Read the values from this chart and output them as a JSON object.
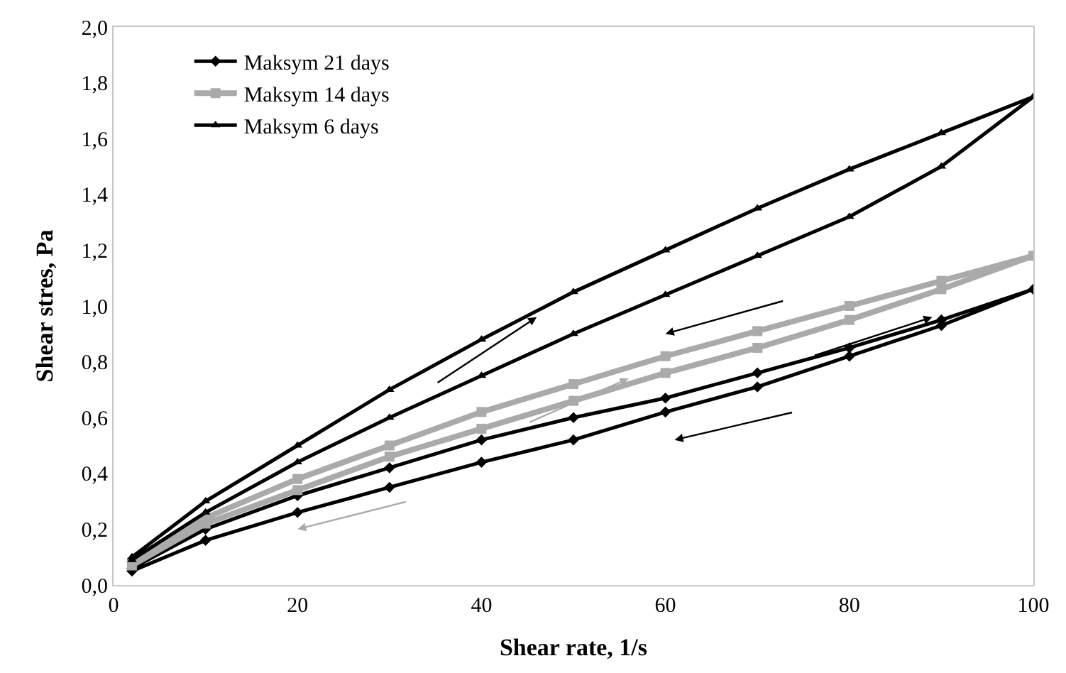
{
  "chart_data": {
    "type": "line",
    "xlabel": "Shear rate, 1/s",
    "ylabel": "Shear stres, Pa",
    "xlim": [
      0,
      100
    ],
    "xticks": [
      0,
      20,
      40,
      60,
      80,
      100
    ],
    "ylim": [
      0,
      2
    ],
    "yticks": [
      {
        "value": 0,
        "label": "0,0"
      },
      {
        "value": 0.2,
        "label": "0,2"
      },
      {
        "value": 0.4,
        "label": "0,4"
      },
      {
        "value": 0.6,
        "label": "0,6"
      },
      {
        "value": 0.8,
        "label": "0,8"
      },
      {
        "value": 1.0,
        "label": "1,0"
      },
      {
        "value": 1.2,
        "label": "1,2"
      },
      {
        "value": 1.4,
        "label": "1,4"
      },
      {
        "value": 1.6,
        "label": "1,6"
      },
      {
        "value": 1.8,
        "label": "1,8"
      },
      {
        "value": 2.0,
        "label": "2,0"
      }
    ],
    "legend": "top left",
    "line_style": "solid",
    "series": [
      {
        "name": "Maksym 21 days",
        "color": "#000000",
        "marker": "diamond",
        "x": [
          2,
          10,
          20,
          30,
          40,
          50,
          60,
          70,
          80,
          90,
          100,
          90,
          80,
          70,
          60,
          50,
          40,
          30,
          20,
          10,
          2
        ],
        "values": [
          0.06,
          0.2,
          0.32,
          0.42,
          0.52,
          0.6,
          0.67,
          0.76,
          0.85,
          0.95,
          1.06,
          0.93,
          0.82,
          0.71,
          0.62,
          0.52,
          0.44,
          0.35,
          0.26,
          0.16,
          0.05
        ]
      },
      {
        "name": "Maksym 14 days",
        "color": "#aaaaaa",
        "marker": "square",
        "x": [
          2,
          10,
          20,
          30,
          40,
          50,
          60,
          70,
          80,
          90,
          100,
          90,
          80,
          70,
          60,
          50,
          40,
          30,
          20,
          10,
          2
        ],
        "values": [
          0.08,
          0.24,
          0.38,
          0.5,
          0.62,
          0.72,
          0.82,
          0.91,
          1.0,
          1.09,
          1.18,
          1.06,
          0.95,
          0.85,
          0.76,
          0.66,
          0.56,
          0.46,
          0.34,
          0.22,
          0.07
        ]
      },
      {
        "name": "Maksym 6 days",
        "color": "#000000",
        "marker": "triangle",
        "x": [
          2,
          10,
          20,
          30,
          40,
          50,
          60,
          70,
          80,
          90,
          100,
          90,
          80,
          70,
          60,
          50,
          40,
          30,
          20,
          10,
          2
        ],
        "values": [
          0.1,
          0.3,
          0.5,
          0.7,
          0.88,
          1.05,
          1.2,
          1.35,
          1.49,
          1.62,
          1.75,
          1.5,
          1.32,
          1.18,
          1.04,
          0.9,
          0.75,
          0.6,
          0.44,
          0.26,
          0.09
        ]
      }
    ]
  }
}
